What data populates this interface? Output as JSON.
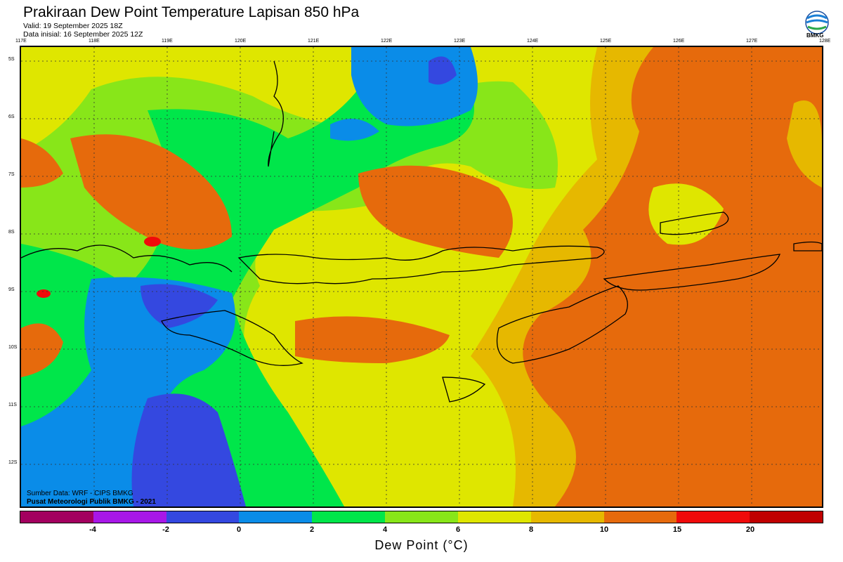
{
  "header": {
    "title": "Prakiraan Dew Point Temperature Lapisan 850 hPa",
    "valid": "Valid: 19 September 2025 18Z",
    "initial": "Data inisial: 16 September 2025 12Z"
  },
  "logo": {
    "text": "BMKG"
  },
  "map": {
    "lon_labels": [
      "117E",
      "118E",
      "119E",
      "120E",
      "121E",
      "122E",
      "123E",
      "124E",
      "125E",
      "126E",
      "127E",
      "128E"
    ],
    "lat_labels": [
      "5S",
      "6S",
      "7S",
      "8S",
      "9S",
      "10S",
      "11S",
      "12S"
    ]
  },
  "credits": {
    "source": "Sumber Data: WRF - CIPS BMKG",
    "owner": "Pusat Meteorologi Publik BMKG - 2021"
  },
  "colorbar": {
    "title": "Dew Point (°C)",
    "labels": [
      "-4",
      "-2",
      "0",
      "2",
      "4",
      "6",
      "8",
      "10",
      "15",
      "20"
    ],
    "colors": [
      "#a3005f",
      "#a817e8",
      "#3448e0",
      "#0a8ce8",
      "#00e64a",
      "#88e619",
      "#dfe600",
      "#e6b800",
      "#e66a0c",
      "#f00a0a",
      "#c00000"
    ]
  },
  "legend_colors": {
    "very_low": "#3448e0",
    "low": "#0a8ce8",
    "mid_green": "#00e64a",
    "lime": "#88e619",
    "yellow": "#dfe600",
    "gold": "#e6b800",
    "orange": "#e66a0c",
    "red": "#f00a0a"
  }
}
